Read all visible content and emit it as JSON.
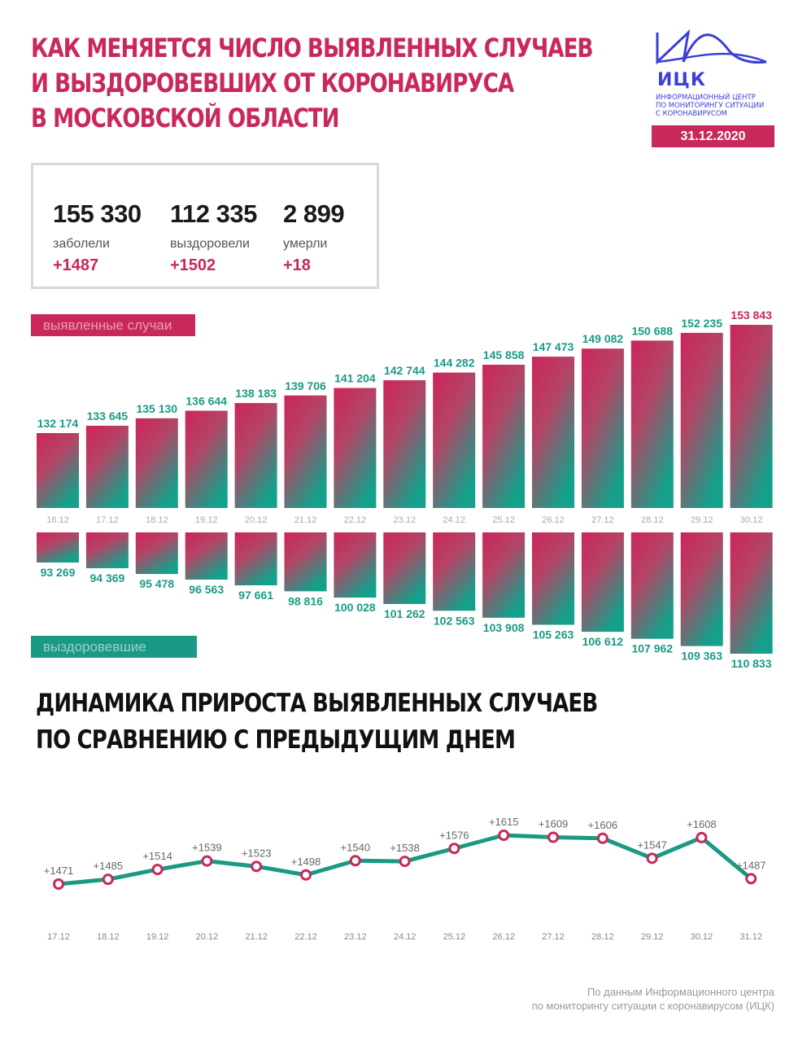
{
  "header": {
    "title_lines": [
      "КАК МЕНЯЕТСЯ ЧИСЛО ВЫЯВЛЕННЫХ СЛУЧАЕВ",
      "И ВЫЗДОРОВЕВШИХ ОТ КОРОНАВИРУСА",
      "В МОСКОВСКОЙ ОБЛАСТИ"
    ],
    "logo_abbr": "ИЦК",
    "logo_sub_lines": [
      "Информационный центр",
      "по мониторингу ситуации",
      "с коронавирусом"
    ],
    "date": "31.12.2020"
  },
  "stats": [
    {
      "value": "155 330",
      "label": "заболели",
      "delta": "+1487"
    },
    {
      "value": "112 335",
      "label": "выздоровели",
      "delta": "+1502"
    },
    {
      "value": "2 899",
      "label": "умерли",
      "delta": "+18"
    }
  ],
  "labels": {
    "cases": "выявленные случаи",
    "recovered": "выздоровевшие"
  },
  "section2": {
    "title_lines": [
      "ДИНАМИКА ПРИРОСТА ВЫЯВЛЕННЫХ СЛУЧАЕВ",
      "ПО СРАВНЕНИЮ С ПРЕДЫДУЩИМ ДНЕМ"
    ]
  },
  "footer": {
    "lines": [
      "По данным Информационного центра",
      "по мониторингу ситуации с коронавирусом (ИЦК)"
    ]
  },
  "colors": {
    "accent": "#c8285a",
    "teal": "#1a9a85",
    "brand_blue": "#3b3fd8"
  },
  "chart_data": [
    {
      "type": "bar",
      "categories": [
        "16.12",
        "17.12",
        "18.12",
        "19.12",
        "20.12",
        "21.12",
        "22.12",
        "23.12",
        "24.12",
        "25.12",
        "26.12",
        "27.12",
        "28.12",
        "29.12",
        "30.12"
      ],
      "series": [
        {
          "name": "выявленные случаи",
          "values": [
            132174,
            133645,
            135130,
            136644,
            138183,
            139706,
            141204,
            142744,
            144282,
            145858,
            147473,
            149082,
            150688,
            152235,
            153843
          ],
          "labels": [
            "132 174",
            "133 645",
            "135 130",
            "136 644",
            "138 183",
            "139 706",
            "141 204",
            "142 744",
            "144 282",
            "145 858",
            "147 473",
            "149 082",
            "150 688",
            "152 235",
            "153 843"
          ]
        },
        {
          "name": "выздоровевшие",
          "values": [
            93269,
            94369,
            95478,
            96563,
            97661,
            98816,
            100028,
            101262,
            102563,
            103908,
            105263,
            106612,
            107962,
            109363,
            110833
          ],
          "labels": [
            "93 269",
            "94 369",
            "95 478",
            "96 563",
            "97 661",
            "98 816",
            "100 028",
            "101 262",
            "102 563",
            "103 908",
            "105 263",
            "106 612",
            "107 962",
            "109 363",
            "110 833"
          ]
        }
      ]
    },
    {
      "type": "line",
      "categories": [
        "17.12",
        "18.12",
        "19.12",
        "20.12",
        "21.12",
        "22.12",
        "23.12",
        "24.12",
        "25.12",
        "26.12",
        "27.12",
        "28.12",
        "29.12",
        "30.12",
        "31.12"
      ],
      "values": [
        1471,
        1485,
        1514,
        1539,
        1523,
        1498,
        1540,
        1538,
        1576,
        1615,
        1609,
        1606,
        1547,
        1608,
        1487
      ],
      "labels": [
        "+1471",
        "+1485",
        "+1514",
        "+1539",
        "+1523",
        "+1498",
        "+1540",
        "+1538",
        "+1576",
        "+1615",
        "+1609",
        "+1606",
        "+1547",
        "+1608",
        "+1487"
      ]
    }
  ]
}
